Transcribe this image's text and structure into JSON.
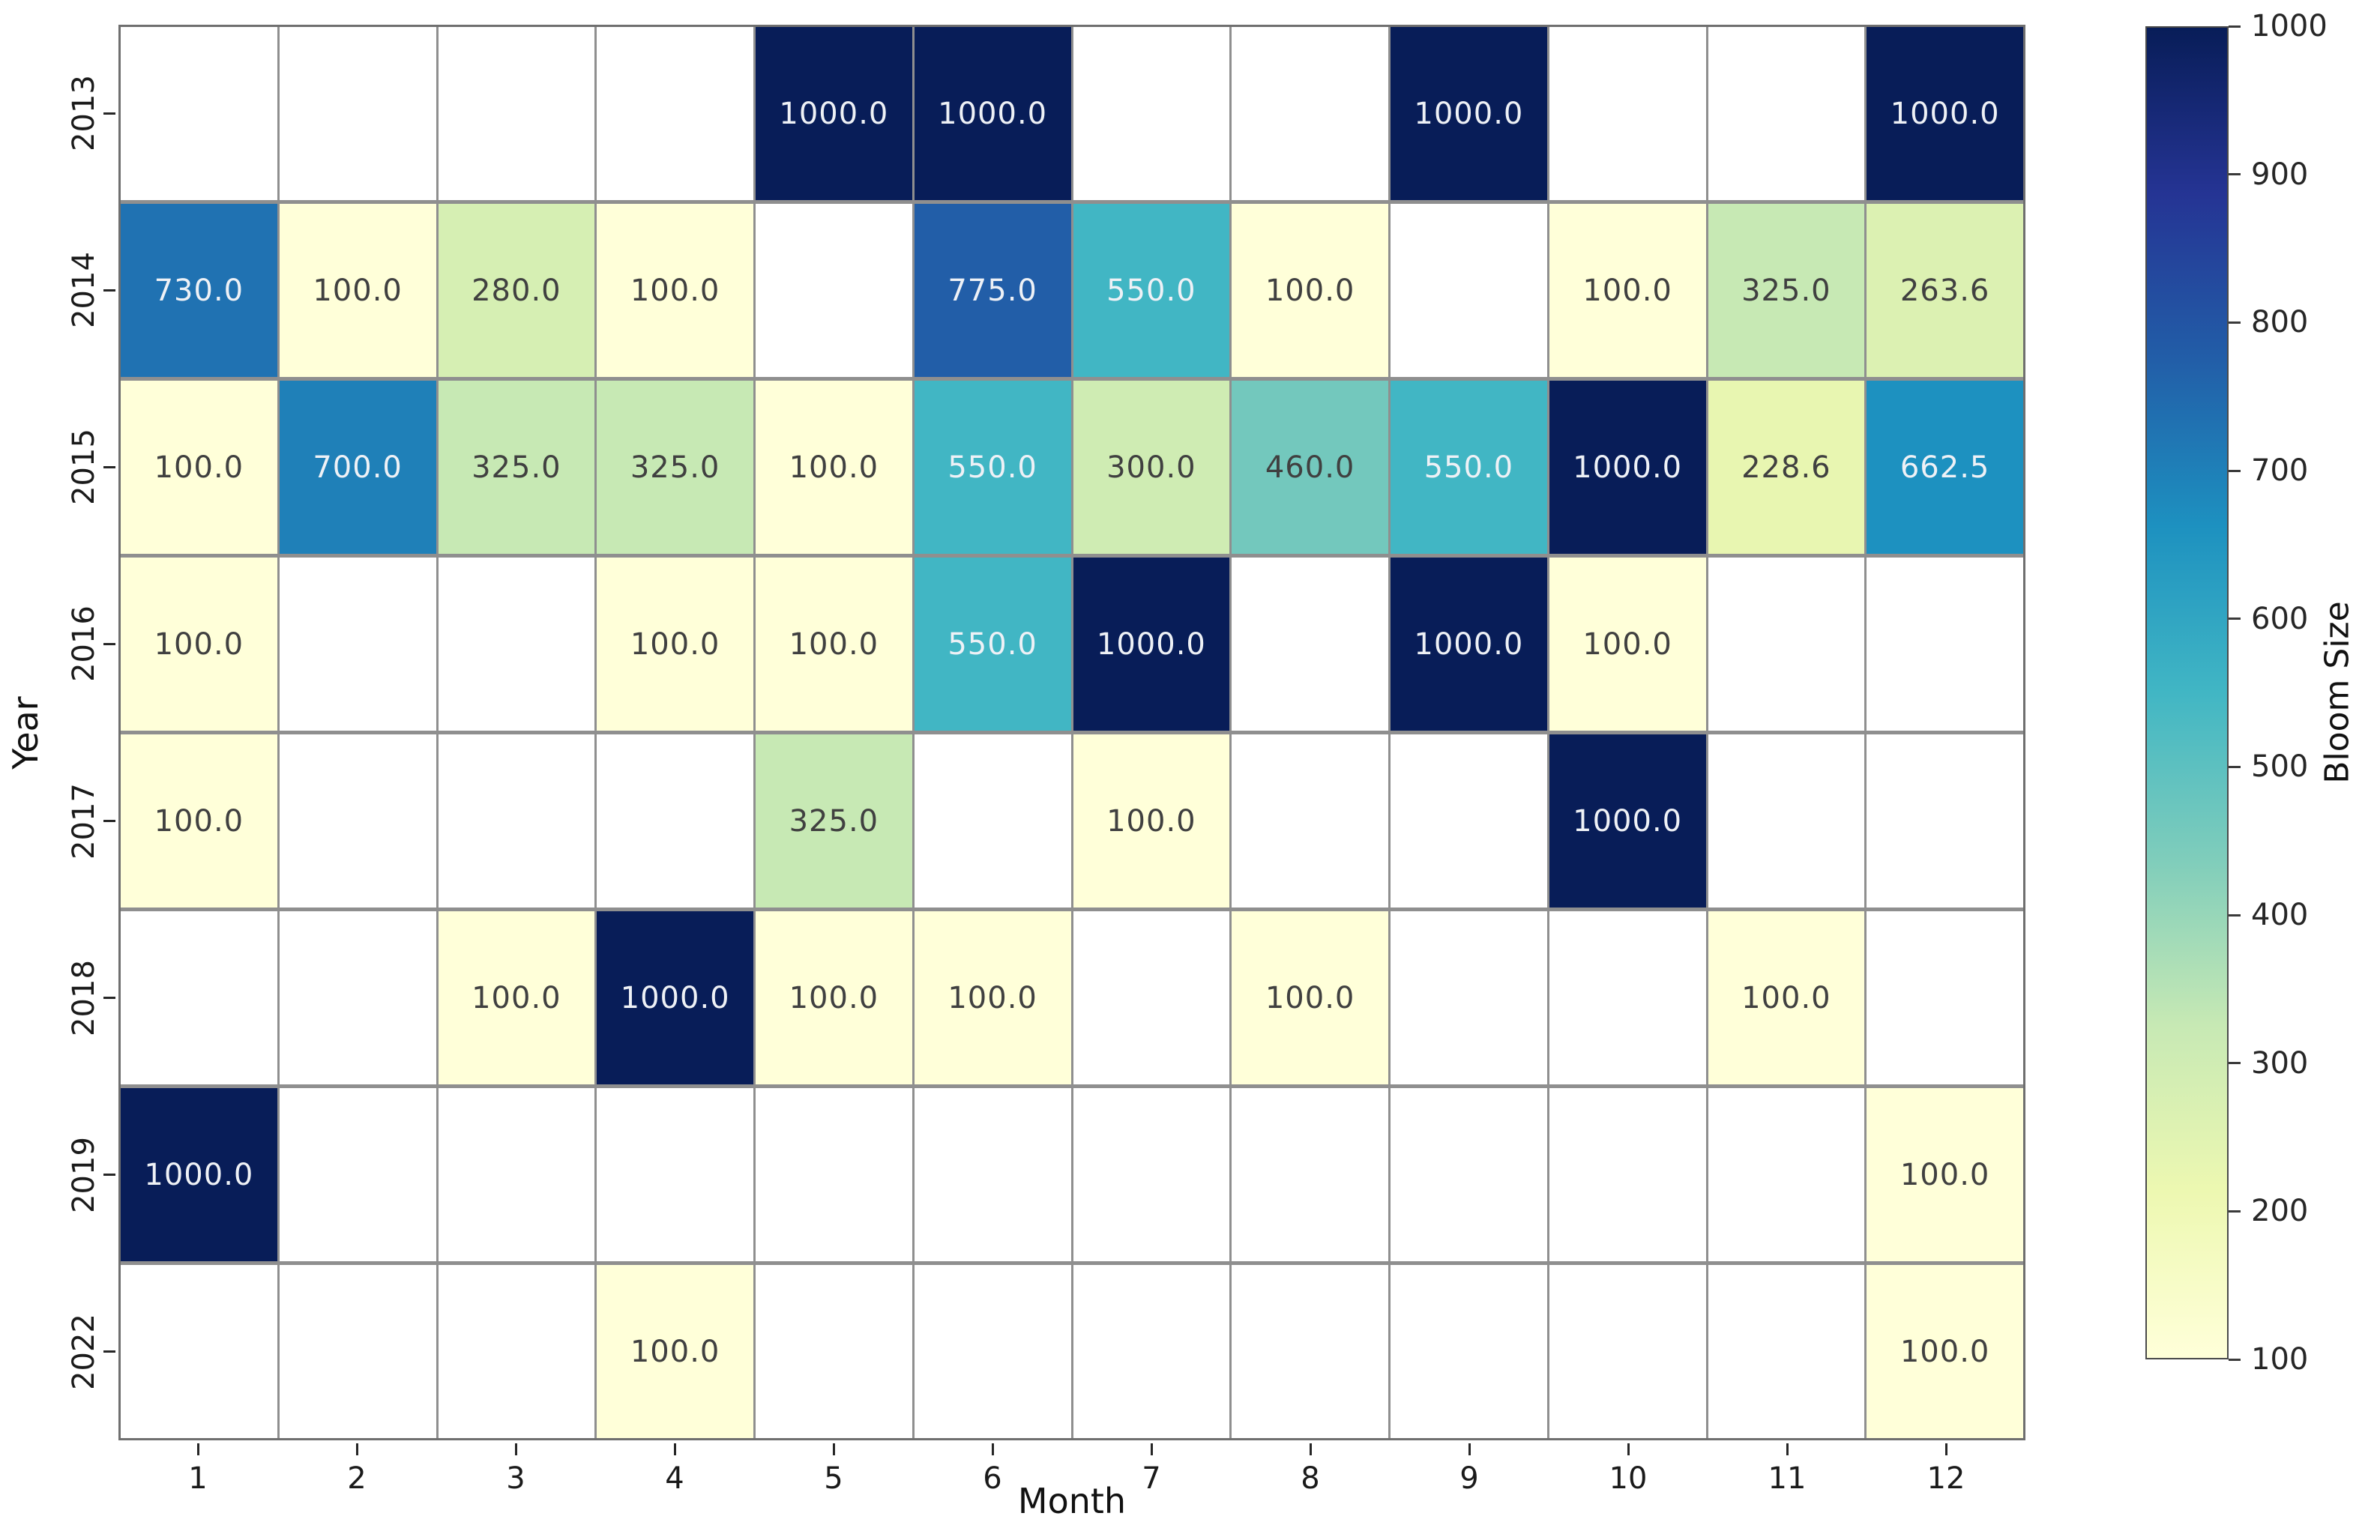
{
  "figure": {
    "background": "#ffffff"
  },
  "chart_data": {
    "type": "heatmap",
    "title": "",
    "xlabel": "Month",
    "ylabel": "Year",
    "colorbar_label": "Bloom Size",
    "x_categories": [
      "1",
      "2",
      "3",
      "4",
      "5",
      "6",
      "7",
      "8",
      "9",
      "10",
      "11",
      "12"
    ],
    "y_categories": [
      "2013",
      "2014",
      "2015",
      "2016",
      "2017",
      "2018",
      "2019",
      "2022"
    ],
    "vmin": 100,
    "vmax": 1000,
    "colormap": "YlGnBu",
    "colormap_stops": [
      "#ffffd9",
      "#edf8b1",
      "#c7e9b4",
      "#7fcdbb",
      "#41b6c4",
      "#1d91c0",
      "#225ea8",
      "#253494",
      "#081d58"
    ],
    "missing_color": "#ffffff",
    "grid_line_color": "#8f8f8f",
    "annotation_decimals": 1,
    "annotation_dark_text_color": "#404040",
    "annotation_light_text_color": "#eef1f6",
    "colorbar_ticks": [
      1000,
      900,
      800,
      700,
      600,
      500,
      400,
      300,
      200,
      100
    ],
    "legend_position": "right",
    "grid_on": true,
    "series": [
      {
        "name": "2013",
        "values": [
          null,
          null,
          null,
          null,
          1000.0,
          1000.0,
          null,
          null,
          1000.0,
          null,
          null,
          1000.0
        ]
      },
      {
        "name": "2014",
        "values": [
          730.0,
          100.0,
          280.0,
          100.0,
          null,
          775.0,
          550.0,
          100.0,
          null,
          100.0,
          325.0,
          263.6
        ]
      },
      {
        "name": "2015",
        "values": [
          100.0,
          700.0,
          325.0,
          325.0,
          100.0,
          550.0,
          300.0,
          460.0,
          550.0,
          1000.0,
          228.6,
          662.5
        ]
      },
      {
        "name": "2016",
        "values": [
          100.0,
          null,
          null,
          100.0,
          100.0,
          550.0,
          1000.0,
          null,
          1000.0,
          100.0,
          null,
          null
        ]
      },
      {
        "name": "2017",
        "values": [
          100.0,
          null,
          null,
          null,
          325.0,
          null,
          100.0,
          null,
          null,
          1000.0,
          null,
          null
        ]
      },
      {
        "name": "2018",
        "values": [
          null,
          null,
          100.0,
          1000.0,
          100.0,
          100.0,
          null,
          100.0,
          null,
          null,
          100.0,
          null
        ]
      },
      {
        "name": "2019",
        "values": [
          1000.0,
          null,
          null,
          null,
          null,
          null,
          null,
          null,
          null,
          null,
          null,
          100.0
        ]
      },
      {
        "name": "2022",
        "values": [
          null,
          null,
          null,
          100.0,
          null,
          null,
          null,
          null,
          null,
          null,
          null,
          100.0
        ]
      }
    ]
  }
}
